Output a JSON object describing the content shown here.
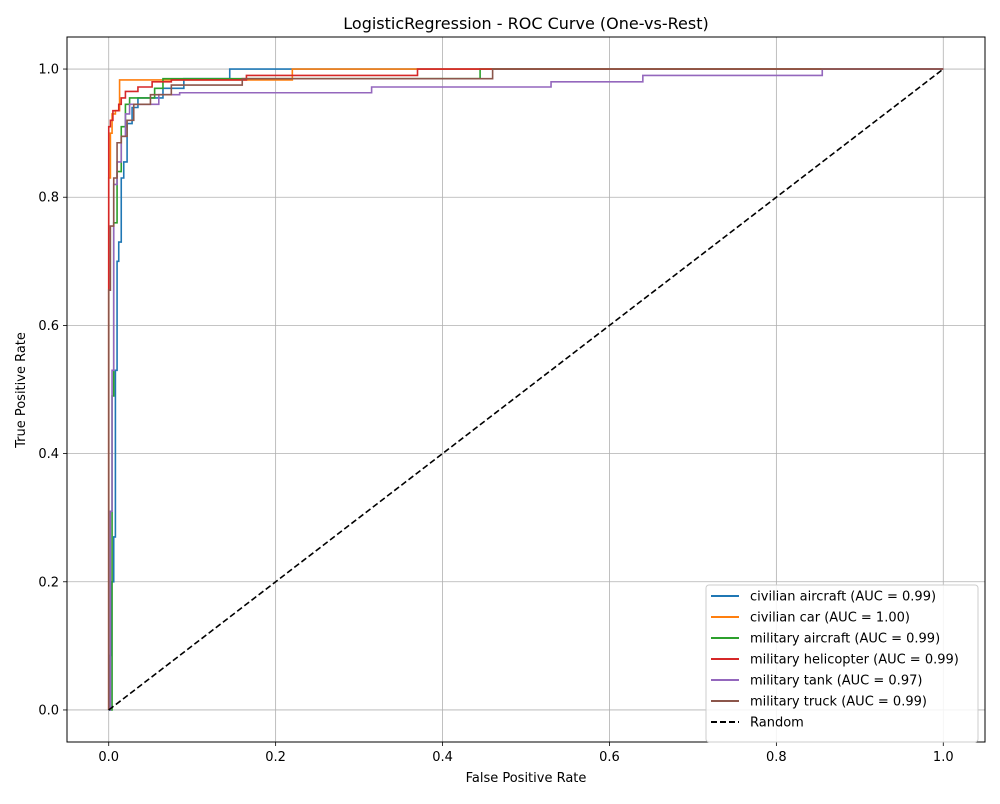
{
  "chart_data": {
    "type": "line",
    "title": "LogisticRegression - ROC Curve (One-vs-Rest)",
    "xlabel": "False Positive Rate",
    "ylabel": "True Positive Rate",
    "xlim": [
      -0.05,
      1.05
    ],
    "ylim": [
      -0.05,
      1.05
    ],
    "xticks": [
      0.0,
      0.2,
      0.4,
      0.6,
      0.8,
      1.0
    ],
    "xtick_labels": [
      "0.0",
      "0.2",
      "0.4",
      "0.6",
      "0.8",
      "1.0"
    ],
    "yticks": [
      0.0,
      0.2,
      0.4,
      0.6,
      0.8,
      1.0
    ],
    "ytick_labels": [
      "0.0",
      "0.2",
      "0.4",
      "0.6",
      "0.8",
      "1.0"
    ],
    "grid": true,
    "legend_position": "lower-right",
    "series": [
      {
        "name": "civilian aircraft (AUC = 0.99)",
        "color": "#1f77b4",
        "style": "solid",
        "x": [
          0,
          0.002,
          0.002,
          0.003,
          0.003,
          0.006,
          0.006,
          0.008,
          0.008,
          0.01,
          0.01,
          0.012,
          0.012,
          0.015,
          0.015,
          0.018,
          0.018,
          0.022,
          0.022,
          0.028,
          0.028,
          0.035,
          0.035,
          0.065,
          0.065,
          0.09,
          0.09,
          0.145,
          0.145,
          0.22,
          0.22,
          1.0
        ],
        "y": [
          0,
          0,
          0.085,
          0.085,
          0.2,
          0.2,
          0.27,
          0.27,
          0.53,
          0.53,
          0.7,
          0.7,
          0.73,
          0.73,
          0.83,
          0.83,
          0.855,
          0.855,
          0.915,
          0.915,
          0.94,
          0.94,
          0.955,
          0.955,
          0.97,
          0.97,
          0.985,
          0.985,
          1.0,
          1.0,
          1.0,
          1.0
        ]
      },
      {
        "name": "civilian car (AUC = 1.00)",
        "color": "#ff7f0e",
        "style": "solid",
        "x": [
          0,
          0,
          0.002,
          0.002,
          0.004,
          0.004,
          0.008,
          0.008,
          0.013,
          0.013,
          0.22,
          0.22,
          1.0
        ],
        "y": [
          0,
          0.83,
          0.83,
          0.9,
          0.9,
          0.93,
          0.93,
          0.935,
          0.935,
          0.983,
          0.983,
          1.0,
          1.0
        ]
      },
      {
        "name": "military aircraft (AUC = 0.99)",
        "color": "#2ca02c",
        "style": "solid",
        "x": [
          0,
          0.004,
          0.004,
          0.006,
          0.006,
          0.01,
          0.01,
          0.015,
          0.015,
          0.02,
          0.02,
          0.025,
          0.025,
          0.035,
          0.035,
          0.055,
          0.055,
          0.065,
          0.065,
          0.445,
          0.445,
          1.0
        ],
        "y": [
          0,
          0,
          0.49,
          0.49,
          0.76,
          0.76,
          0.84,
          0.84,
          0.91,
          0.91,
          0.945,
          0.945,
          0.955,
          0.955,
          0.955,
          0.955,
          0.97,
          0.97,
          0.985,
          0.985,
          1.0,
          1.0
        ]
      },
      {
        "name": "military helicopter (AUC = 0.99)",
        "color": "#d62728",
        "style": "solid",
        "x": [
          0,
          0,
          0.002,
          0.002,
          0.005,
          0.005,
          0.012,
          0.012,
          0.015,
          0.015,
          0.02,
          0.02,
          0.035,
          0.035,
          0.052,
          0.052,
          0.075,
          0.075,
          0.165,
          0.165,
          0.37,
          0.37,
          1.0
        ],
        "y": [
          0,
          0.91,
          0.91,
          0.92,
          0.92,
          0.935,
          0.935,
          0.945,
          0.945,
          0.955,
          0.955,
          0.965,
          0.965,
          0.972,
          0.972,
          0.98,
          0.98,
          0.983,
          0.983,
          0.99,
          0.99,
          1.0,
          1.0
        ]
      },
      {
        "name": "military tank (AUC = 0.97)",
        "color": "#9467bd",
        "style": "solid",
        "x": [
          0,
          0.002,
          0.002,
          0.004,
          0.004,
          0.006,
          0.006,
          0.01,
          0.01,
          0.015,
          0.015,
          0.02,
          0.02,
          0.025,
          0.025,
          0.035,
          0.035,
          0.06,
          0.06,
          0.085,
          0.085,
          0.315,
          0.315,
          0.53,
          0.53,
          0.64,
          0.64,
          0.855,
          0.855,
          1.0
        ],
        "y": [
          0,
          0,
          0.31,
          0.31,
          0.53,
          0.53,
          0.82,
          0.82,
          0.855,
          0.855,
          0.895,
          0.895,
          0.93,
          0.93,
          0.945,
          0.945,
          0.945,
          0.945,
          0.96,
          0.96,
          0.963,
          0.963,
          0.972,
          0.972,
          0.98,
          0.98,
          0.99,
          0.99,
          1.0,
          1.0
        ]
      },
      {
        "name": "military truck (AUC = 0.99)",
        "color": "#8c564b",
        "style": "solid",
        "x": [
          0,
          0,
          0.002,
          0.002,
          0.006,
          0.006,
          0.01,
          0.01,
          0.015,
          0.015,
          0.022,
          0.022,
          0.03,
          0.03,
          0.05,
          0.05,
          0.075,
          0.075,
          0.16,
          0.16,
          0.46,
          0.46,
          1.0
        ],
        "y": [
          0,
          0.655,
          0.655,
          0.755,
          0.755,
          0.83,
          0.83,
          0.885,
          0.885,
          0.895,
          0.895,
          0.92,
          0.92,
          0.945,
          0.945,
          0.96,
          0.96,
          0.975,
          0.975,
          0.985,
          0.985,
          1.0,
          1.0
        ]
      },
      {
        "name": "Random",
        "color": "#000000",
        "style": "dashed",
        "x": [
          0,
          1
        ],
        "y": [
          0,
          1
        ]
      }
    ]
  }
}
